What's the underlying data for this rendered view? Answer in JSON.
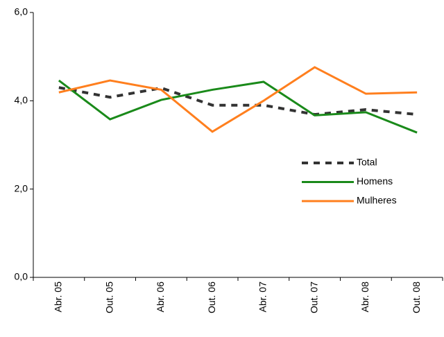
{
  "chart_data": {
    "type": "line",
    "categories": [
      "Abr. 05",
      "Out. 05",
      "Abr. 06",
      "Out. 06",
      "Abr. 07",
      "Out. 07",
      "Abr. 08",
      "Out. 08"
    ],
    "series": [
      {
        "name": "Total",
        "color": "#333333",
        "dashed": true,
        "values": [
          4.3,
          4.08,
          4.29,
          3.9,
          3.9,
          3.69,
          3.8,
          3.69
        ]
      },
      {
        "name": "Homens",
        "color": "#1a8a1a",
        "dashed": false,
        "values": [
          4.46,
          3.58,
          4.02,
          4.25,
          4.43,
          3.67,
          3.74,
          3.28
        ]
      },
      {
        "name": "Mulheres",
        "color": "#ff7f1e",
        "dashed": false,
        "values": [
          4.19,
          4.46,
          4.25,
          3.3,
          4.0,
          4.76,
          4.16,
          4.19
        ]
      }
    ],
    "ylim": [
      0,
      6
    ],
    "yticks": [
      {
        "value": 0,
        "label": "0,0"
      },
      {
        "value": 2,
        "label": "2,0"
      },
      {
        "value": 4,
        "label": "4,0"
      },
      {
        "value": 6,
        "label": "6,0"
      }
    ]
  }
}
